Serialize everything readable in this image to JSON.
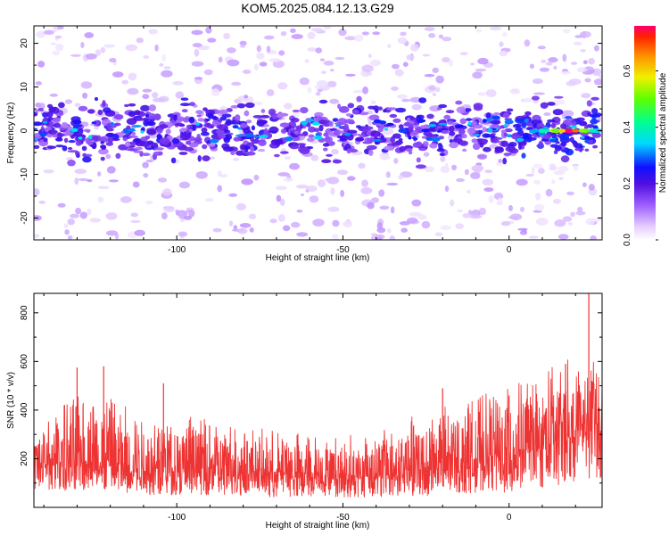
{
  "title": "KOM5.2025.084.12.13.G29",
  "chart_data": [
    {
      "type": "heatmap",
      "xlabel": "Height of straight line (km)",
      "ylabel": "Frequency (Hz)",
      "xlim": [
        -143,
        28
      ],
      "ylim": [
        -25,
        24
      ],
      "xticks": [
        -100,
        -50,
        0
      ],
      "xtick_labels": [
        "-100",
        "-50",
        "0"
      ],
      "yticks": [
        20,
        10,
        0,
        -10,
        -20
      ],
      "ytick_labels": [
        "20",
        "10",
        "0",
        "-10",
        "-20"
      ],
      "colorbar": {
        "label": "Normalized spectral amplitude",
        "range": [
          0,
          0.76
        ],
        "ticks": [
          0.0,
          0.2,
          0.4,
          0.6
        ],
        "tick_labels": [
          "0.0",
          "0.2",
          "0.4",
          "0.6"
        ]
      },
      "description_points": [
        {
          "x": -130,
          "y": 2,
          "v": 0.25
        },
        {
          "x": -120,
          "y": -1,
          "v": 0.22
        },
        {
          "x": -104,
          "y": 1,
          "v": 0.18
        },
        {
          "x": -74,
          "y": 2,
          "v": 0.2
        },
        {
          "x": -56,
          "y": 2,
          "v": 0.18
        },
        {
          "x": -45,
          "y": -2,
          "v": 0.2
        },
        {
          "x": -32,
          "y": 0,
          "v": 0.28
        },
        {
          "x": -22,
          "y": -2,
          "v": 0.3
        },
        {
          "x": -15,
          "y": 1,
          "v": 0.25
        },
        {
          "x": -4,
          "y": 3,
          "v": 0.28
        },
        {
          "x": 0,
          "y": 2,
          "v": 0.3
        },
        {
          "x": 10,
          "y": 0,
          "v": 0.4
        },
        {
          "x": 14,
          "y": 0,
          "v": 0.55
        },
        {
          "x": 18,
          "y": 0,
          "v": 0.76
        },
        {
          "x": 23,
          "y": 0,
          "v": 0.5
        },
        {
          "x": 26,
          "y": 0,
          "v": 0.35
        }
      ],
      "grid": false
    },
    {
      "type": "line",
      "xlabel": "Height of straight line (km)",
      "ylabel": "SNR (10 * v/v)",
      "xlim": [
        -143,
        28
      ],
      "ylim": [
        0,
        880
      ],
      "xticks": [
        -100,
        -50,
        0
      ],
      "xtick_labels": [
        "-100",
        "-50",
        "0"
      ],
      "yticks": [
        200,
        400,
        600,
        800
      ],
      "ytick_labels": [
        "200",
        "400",
        "600",
        "800"
      ],
      "series": [
        {
          "color": "#ee3333",
          "envelope": {
            "x": [
              -143,
              -130,
              -120,
              -110,
              -100,
              -90,
              -80,
              -70,
              -60,
              -50,
              -40,
              -30,
              -20,
              -10,
              0,
              10,
              20,
              25,
              28
            ],
            "low": [
              60,
              70,
              60,
              50,
              50,
              50,
              45,
              40,
              40,
              40,
              40,
              45,
              50,
              60,
              60,
              80,
              100,
              110,
              120
            ],
            "mean": [
              150,
              170,
              160,
              150,
              140,
              140,
              130,
              125,
              120,
              115,
              120,
              130,
              150,
              170,
              190,
              230,
              280,
              300,
              310
            ],
            "high": [
              310,
              430,
              420,
              360,
              350,
              340,
              310,
              290,
              280,
              270,
              300,
              340,
              380,
              420,
              460,
              520,
              590,
              560,
              560
            ]
          },
          "spikes": [
            {
              "x": -130,
              "y": 575
            },
            {
              "x": -122,
              "y": 580
            },
            {
              "x": -104,
              "y": 510
            },
            {
              "x": -20,
              "y": 490
            },
            {
              "x": 0,
              "y": 460
            },
            {
              "x": 17,
              "y": 590
            },
            {
              "x": 24,
              "y": 880
            }
          ]
        }
      ],
      "grid": false
    }
  ]
}
